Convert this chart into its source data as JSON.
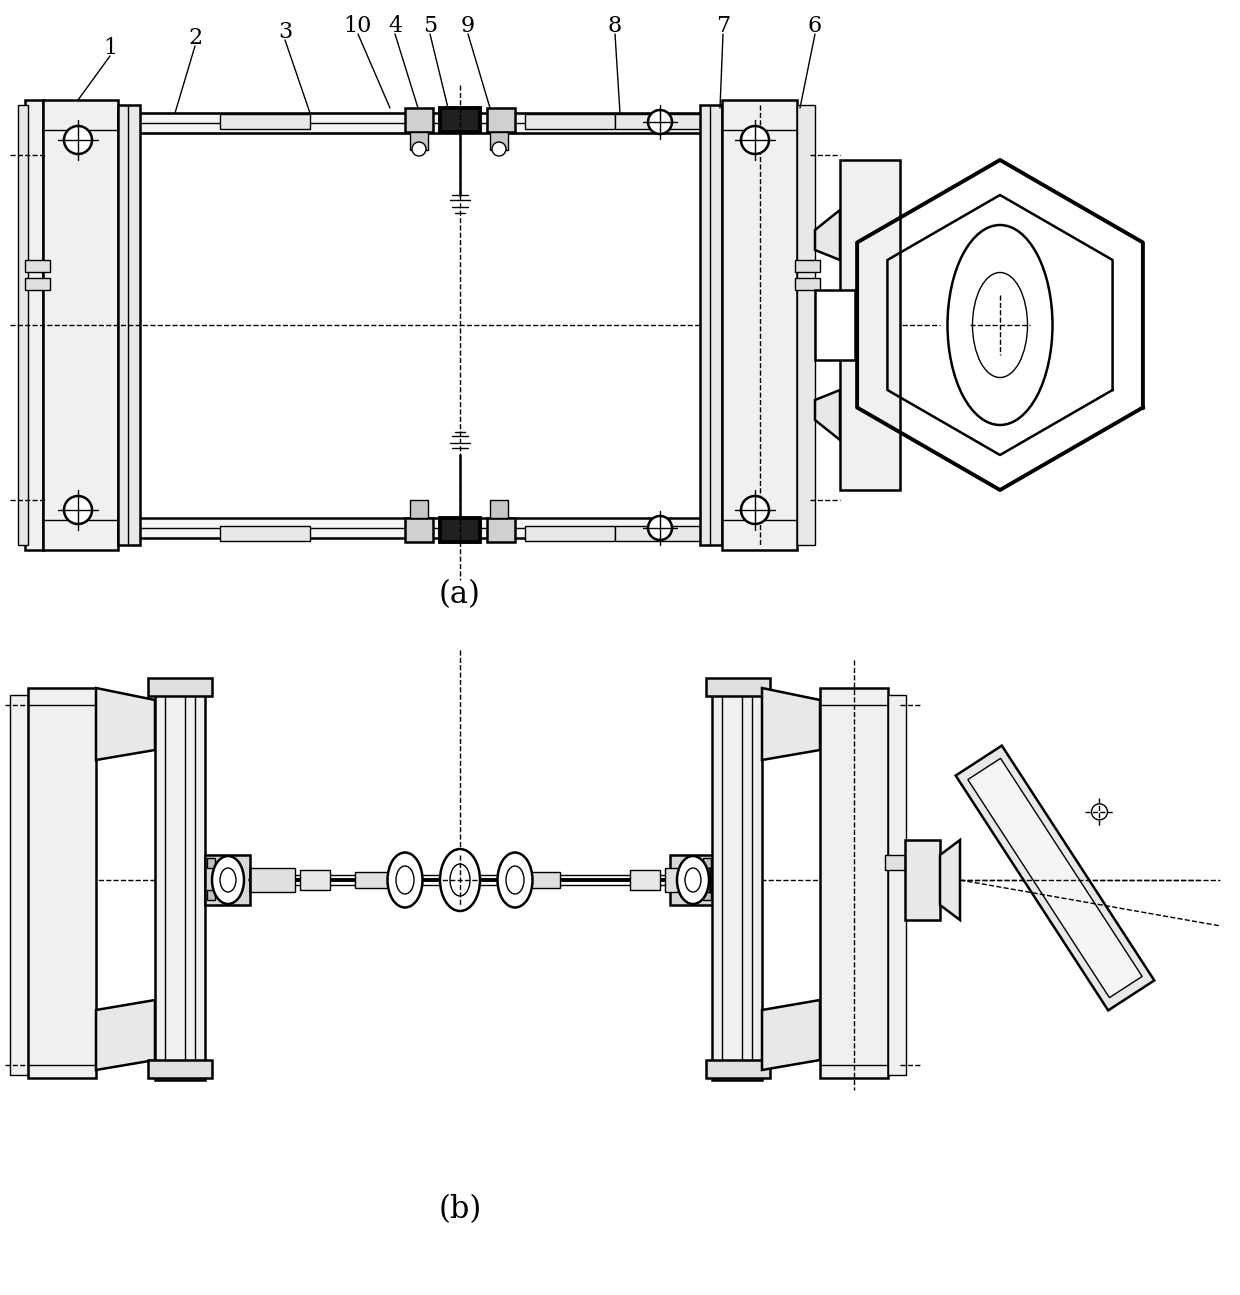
{
  "bg_color": "#ffffff",
  "line_color": "#000000",
  "figsize": [
    12.4,
    12.95
  ],
  "dpi": 100,
  "label_a": "(a)",
  "label_b": "(b)",
  "part_labels": [
    "1",
    "2",
    "3",
    "10",
    "4",
    "5",
    "9",
    "8",
    "7",
    "6"
  ]
}
